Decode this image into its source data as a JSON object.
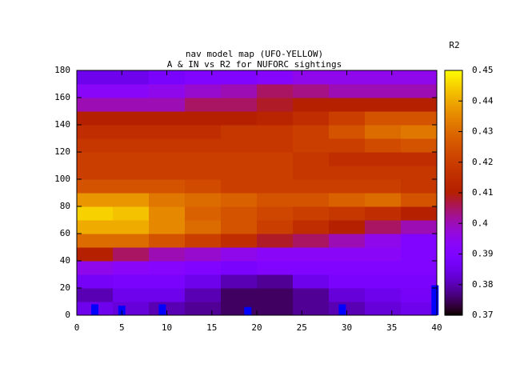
{
  "chart_data": {
    "type": "heatmap",
    "title": "nav model map (UFO-YELLOW)",
    "subtitle": "A & IN vs R2 for NUFORC sightings",
    "colorbar_label": "R2",
    "palette": "rgbformulae 7,5,15",
    "x_edges": [
      0,
      4,
      8,
      12,
      16,
      20,
      24,
      28,
      32,
      36,
      40
    ],
    "y_edges": [
      0,
      10,
      20,
      30,
      40,
      50,
      60,
      70,
      80,
      90,
      100,
      110,
      120,
      130,
      140,
      150,
      160,
      170,
      180
    ],
    "values": [
      [
        0.385,
        0.383,
        0.38,
        0.378,
        0.375,
        0.375,
        0.378,
        0.38,
        0.383,
        0.385
      ],
      [
        0.38,
        0.385,
        0.385,
        0.38,
        0.375,
        0.375,
        0.378,
        0.383,
        0.385,
        0.387
      ],
      [
        0.387,
        0.388,
        0.388,
        0.385,
        0.38,
        0.378,
        0.385,
        0.388,
        0.388,
        0.388
      ],
      [
        0.395,
        0.393,
        0.392,
        0.39,
        0.388,
        0.39,
        0.39,
        0.39,
        0.39,
        0.39
      ],
      [
        0.41,
        0.405,
        0.4,
        0.398,
        0.395,
        0.393,
        0.393,
        0.393,
        0.393,
        0.39
      ],
      [
        0.43,
        0.43,
        0.425,
        0.42,
        0.415,
        0.408,
        0.405,
        0.4,
        0.395,
        0.39
      ],
      [
        0.44,
        0.44,
        0.435,
        0.43,
        0.425,
        0.42,
        0.415,
        0.41,
        0.405,
        0.4
      ],
      [
        0.445,
        0.443,
        0.435,
        0.428,
        0.425,
        0.422,
        0.42,
        0.418,
        0.415,
        0.41
      ],
      [
        0.437,
        0.437,
        0.432,
        0.43,
        0.428,
        0.425,
        0.425,
        0.428,
        0.43,
        0.425
      ],
      [
        0.425,
        0.425,
        0.425,
        0.423,
        0.42,
        0.42,
        0.42,
        0.42,
        0.42,
        0.418
      ],
      [
        0.42,
        0.42,
        0.42,
        0.42,
        0.42,
        0.42,
        0.418,
        0.418,
        0.418,
        0.418
      ],
      [
        0.42,
        0.42,
        0.42,
        0.42,
        0.42,
        0.42,
        0.418,
        0.415,
        0.415,
        0.415
      ],
      [
        0.418,
        0.418,
        0.418,
        0.418,
        0.418,
        0.418,
        0.42,
        0.42,
        0.423,
        0.425
      ],
      [
        0.415,
        0.415,
        0.415,
        0.415,
        0.418,
        0.418,
        0.42,
        0.425,
        0.43,
        0.432
      ],
      [
        0.41,
        0.41,
        0.41,
        0.41,
        0.41,
        0.412,
        0.415,
        0.42,
        0.425,
        0.425
      ],
      [
        0.4,
        0.4,
        0.4,
        0.405,
        0.405,
        0.408,
        0.41,
        0.41,
        0.41,
        0.41
      ],
      [
        0.393,
        0.393,
        0.395,
        0.398,
        0.4,
        0.405,
        0.403,
        0.4,
        0.4,
        0.4
      ],
      [
        0.385,
        0.385,
        0.388,
        0.39,
        0.39,
        0.392,
        0.395,
        0.395,
        0.395,
        0.395
      ]
    ],
    "points": {
      "color": "#0000ff",
      "x": [
        2,
        5,
        9.5,
        19,
        29.5,
        39.8
      ],
      "y": [
        8,
        7,
        8,
        6,
        8,
        22
      ]
    },
    "xlim": [
      0,
      40
    ],
    "xticks": [
      0,
      5,
      10,
      15,
      20,
      25,
      30,
      35,
      40
    ],
    "ylim": [
      0,
      180
    ],
    "yticks": [
      0,
      20,
      40,
      60,
      80,
      100,
      120,
      140,
      160,
      180
    ],
    "cblim": [
      0.37,
      0.45
    ],
    "cbticks": [
      0.37,
      0.38,
      0.39,
      0.4,
      0.41,
      0.42,
      0.43,
      0.44,
      0.45
    ]
  }
}
